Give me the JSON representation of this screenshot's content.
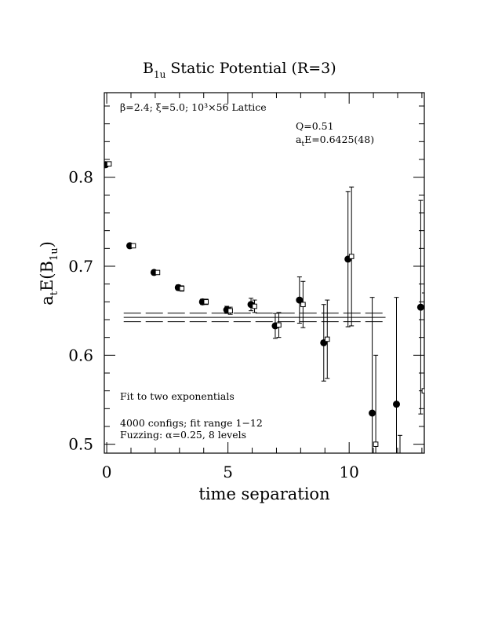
{
  "chart_data": {
    "type": "scatter",
    "title": "B",
    "title_sub": "1u",
    "title_rest": " Static Potential (R=3)",
    "xlabel": "time separation",
    "ylabel_main": "a",
    "ylabel_sub_t": "t",
    "ylabel_mid": "E(B",
    "ylabel_sub": "1u",
    "ylabel_end": ")",
    "xlim": [
      -0.1,
      13.1
    ],
    "ylim": [
      0.49,
      0.895
    ],
    "x_ticks": [
      0,
      5,
      10
    ],
    "y_ticks": [
      0.5,
      0.6,
      0.7,
      0.8
    ],
    "x_tick_labels": [
      "0",
      "5",
      "10"
    ],
    "y_tick_labels": [
      "0.5",
      "0.6",
      "0.7",
      "0.8"
    ],
    "annotations": {
      "lattice": "β=2.4; ξ=5.0; 10³×56 Lattice",
      "q_value": "Q=0.51",
      "energy_prefix": "a",
      "energy_sub": "t",
      "energy_value": "E=0.6425(48)",
      "fit_type": "Fit to two exponentials",
      "configs": "4000 configs; fit range 1−12",
      "fuzzing": "Fuzzing: α=0.25, 8 levels"
    },
    "fit": {
      "t_range": [
        0.7,
        11.5
      ],
      "central": 0.6425,
      "error": 0.0048
    },
    "series": [
      {
        "marker": "filled-circle",
        "points": [
          {
            "t": 0,
            "y": 0.814,
            "err": 0.002
          },
          {
            "t": 1,
            "y": 0.723,
            "err": 0.002
          },
          {
            "t": 2,
            "y": 0.693,
            "err": 0.002
          },
          {
            "t": 3,
            "y": 0.676,
            "err": 0.003
          },
          {
            "t": 4,
            "y": 0.66,
            "err": 0.003
          },
          {
            "t": 5,
            "y": 0.651,
            "err": 0.004
          },
          {
            "t": 6,
            "y": 0.657,
            "err": 0.007
          },
          {
            "t": 7,
            "y": 0.633,
            "err": 0.014
          },
          {
            "t": 8,
            "y": 0.662,
            "err": 0.026
          },
          {
            "t": 9,
            "y": 0.614,
            "err": 0.043
          },
          {
            "t": 10,
            "y": 0.708,
            "err": 0.076
          },
          {
            "t": 11,
            "y": 0.535,
            "err": 0.13
          },
          {
            "t": 12,
            "y": 0.545,
            "err": 0.12
          },
          {
            "t": 13,
            "y": 0.654,
            "err": 0.12
          }
        ]
      },
      {
        "marker": "open-square",
        "points": [
          {
            "t": 0,
            "y": 0.815,
            "err": 0.002
          },
          {
            "t": 1,
            "y": 0.723,
            "err": 0.002
          },
          {
            "t": 2,
            "y": 0.693,
            "err": 0.002
          },
          {
            "t": 3,
            "y": 0.675,
            "err": 0.003
          },
          {
            "t": 4,
            "y": 0.66,
            "err": 0.003
          },
          {
            "t": 5,
            "y": 0.65,
            "err": 0.004
          },
          {
            "t": 6,
            "y": 0.655,
            "err": 0.007
          },
          {
            "t": 7,
            "y": 0.634,
            "err": 0.014
          },
          {
            "t": 8,
            "y": 0.657,
            "err": 0.026
          },
          {
            "t": 9,
            "y": 0.618,
            "err": 0.044
          },
          {
            "t": 10,
            "y": 0.711,
            "err": 0.078
          },
          {
            "t": 11,
            "y": 0.5,
            "err": 0.1
          },
          {
            "t": 12,
            "y": 0.44,
            "err": 0.07
          },
          {
            "t": 13,
            "y": 0.56,
            "err": 0.11
          }
        ]
      }
    ]
  }
}
